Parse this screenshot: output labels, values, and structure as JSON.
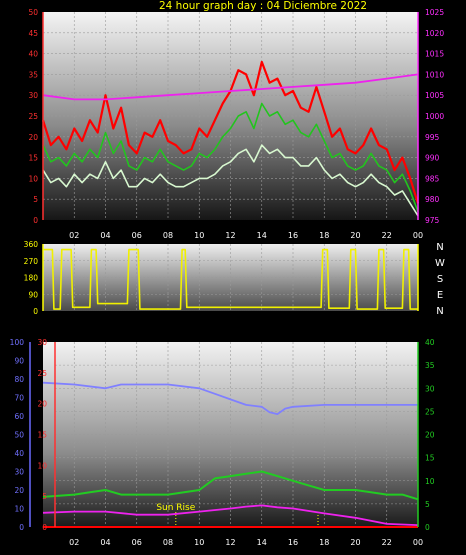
{
  "chart_data": [
    {
      "id": "wind",
      "type": "line",
      "title": "24 hour graph day : 04 Diciembre 2022",
      "x_ticks": [
        "02",
        "04",
        "06",
        "08",
        "10",
        "12",
        "14",
        "16",
        "18",
        "20",
        "22",
        "00"
      ],
      "y_left": {
        "range": [
          0,
          50
        ],
        "ticks": [
          0,
          5,
          10,
          15,
          20,
          25,
          30,
          35,
          40,
          45,
          50
        ]
      },
      "y_right": {
        "range": [
          975,
          1025
        ],
        "ticks": [
          975,
          980,
          985,
          990,
          995,
          1000,
          1005,
          1010,
          1015,
          1020,
          1025
        ]
      },
      "series": [
        {
          "key": "gust",
          "color": "#ff0000",
          "axis": "left",
          "x": [
            0,
            0.5,
            1,
            1.5,
            2,
            2.5,
            3,
            3.5,
            4,
            4.5,
            5,
            5.5,
            6,
            6.5,
            7,
            7.5,
            8,
            8.5,
            9,
            9.5,
            10,
            10.5,
            11,
            11.5,
            12,
            12.5,
            13,
            13.5,
            14,
            14.5,
            15,
            15.5,
            16,
            16.5,
            17,
            17.5,
            18,
            18.5,
            19,
            19.5,
            20,
            20.5,
            21,
            21.5,
            22,
            22.5,
            23,
            23.5,
            24
          ],
          "values": [
            24,
            18,
            20,
            17,
            22,
            19,
            24,
            21,
            30,
            22,
            27,
            18,
            16,
            21,
            20,
            24,
            19,
            18,
            16,
            17,
            22,
            20,
            24,
            28,
            31,
            36,
            35,
            30,
            38,
            33,
            34,
            30,
            31,
            27,
            26,
            32,
            26,
            20,
            22,
            17,
            16,
            18,
            22,
            18,
            17,
            12,
            15,
            10,
            4
          ]
        },
        {
          "key": "avg",
          "color": "#22c41e",
          "axis": "left",
          "x": [
            0,
            0.5,
            1,
            1.5,
            2,
            2.5,
            3,
            3.5,
            4,
            4.5,
            5,
            5.5,
            6,
            6.5,
            7,
            7.5,
            8,
            8.5,
            9,
            9.5,
            10,
            10.5,
            11,
            11.5,
            12,
            12.5,
            13,
            13.5,
            14,
            14.5,
            15,
            15.5,
            16,
            16.5,
            17,
            17.5,
            18,
            18.5,
            19,
            19.5,
            20,
            20.5,
            21,
            21.5,
            22,
            22.5,
            23,
            23.5,
            24
          ],
          "values": [
            18,
            14,
            15,
            13,
            16,
            14,
            17,
            15,
            21,
            16,
            19,
            13,
            12,
            15,
            14,
            17,
            14,
            13,
            12,
            13,
            16,
            15,
            17,
            20,
            22,
            25,
            26,
            22,
            28,
            25,
            26,
            23,
            24,
            21,
            20,
            23,
            19,
            15,
            16,
            13,
            12,
            13,
            16,
            13,
            12,
            9,
            11,
            7,
            2
          ]
        },
        {
          "key": "speed",
          "color": "#d8f8d0",
          "axis": "left",
          "x": [
            0,
            0.5,
            1,
            1.5,
            2,
            2.5,
            3,
            3.5,
            4,
            4.5,
            5,
            5.5,
            6,
            6.5,
            7,
            7.5,
            8,
            8.5,
            9,
            9.5,
            10,
            10.5,
            11,
            11.5,
            12,
            12.5,
            13,
            13.5,
            14,
            14.5,
            15,
            15.5,
            16,
            16.5,
            17,
            17.5,
            18,
            18.5,
            19,
            19.5,
            20,
            20.5,
            21,
            21.5,
            22,
            22.5,
            23,
            23.5,
            24
          ],
          "values": [
            12,
            9,
            10,
            8,
            11,
            9,
            11,
            10,
            14,
            10,
            12,
            8,
            8,
            10,
            9,
            11,
            9,
            8,
            8,
            9,
            10,
            10,
            11,
            13,
            14,
            16,
            17,
            14,
            18,
            16,
            17,
            15,
            15,
            13,
            13,
            15,
            12,
            10,
            11,
            9,
            8,
            9,
            11,
            9,
            8,
            6,
            7,
            4,
            1
          ]
        },
        {
          "key": "pressure",
          "color": "#ee22ee",
          "axis": "right",
          "x": [
            0,
            2,
            4,
            6,
            8,
            10,
            12,
            14,
            16,
            18,
            20,
            22,
            24
          ],
          "values": [
            1005,
            1004,
            1004,
            1004.5,
            1005,
            1005.5,
            1006,
            1006.5,
            1007,
            1007.5,
            1008,
            1009,
            1010
          ]
        }
      ]
    },
    {
      "id": "direction",
      "type": "line",
      "x_ticks": [
        "02",
        "04",
        "06",
        "08",
        "10",
        "12",
        "14",
        "16",
        "18",
        "20",
        "22",
        "00"
      ],
      "y_left": {
        "range": [
          0,
          360
        ],
        "ticks": [
          0,
          90,
          180,
          270,
          360
        ]
      },
      "compass": [
        "N",
        "W",
        "S",
        "E",
        "N"
      ],
      "series": [
        {
          "key": "dir",
          "color": "#f0f000",
          "x": [
            0,
            0.6,
            0.7,
            1.1,
            1.2,
            1.8,
            1.9,
            3.0,
            3.1,
            3.4,
            3.5,
            5.4,
            5.5,
            6.1,
            6.2,
            8.8,
            8.9,
            9.1,
            9.2,
            17.8,
            17.9,
            18.2,
            18.3,
            19.6,
            19.7,
            20.0,
            20.1,
            21.4,
            21.5,
            21.8,
            21.9,
            23.0,
            23.1,
            23.4,
            23.5,
            24
          ],
          "values": [
            330,
            330,
            10,
            10,
            330,
            330,
            20,
            20,
            330,
            330,
            40,
            40,
            330,
            330,
            10,
            10,
            330,
            330,
            20,
            20,
            330,
            330,
            15,
            15,
            330,
            330,
            10,
            10,
            330,
            330,
            15,
            15,
            330,
            330,
            10,
            10
          ]
        }
      ]
    },
    {
      "id": "temp_hum",
      "type": "line",
      "x_ticks": [
        "02",
        "04",
        "06",
        "08",
        "10",
        "12",
        "14",
        "16",
        "18",
        "20",
        "22",
        "00"
      ],
      "y_humidity": {
        "range": [
          0,
          100
        ],
        "ticks": [
          0,
          10,
          20,
          30,
          40,
          50,
          60,
          70,
          80,
          90,
          100
        ]
      },
      "y_left": {
        "range": [
          0,
          30
        ],
        "ticks": [
          0,
          5,
          10,
          15,
          20,
          25,
          30
        ]
      },
      "y_right": {
        "range": [
          0,
          40
        ],
        "ticks": [
          0,
          5,
          10,
          15,
          20,
          25,
          30,
          35,
          40
        ]
      },
      "annotation": "Sun Rise",
      "sunrise_x": 8.5,
      "sunset_x": 17.6,
      "series": [
        {
          "key": "humidity",
          "color": "#8080ff",
          "axis": "humidity",
          "x": [
            0,
            2,
            4,
            5,
            6,
            8,
            10,
            11,
            12,
            13,
            14,
            14.5,
            15,
            15.5,
            16,
            18,
            20,
            22,
            24
          ],
          "values": [
            78,
            77,
            75,
            77,
            77,
            77,
            75,
            72,
            69,
            66,
            65,
            62,
            61,
            64,
            65,
            66,
            66,
            66,
            66
          ]
        },
        {
          "key": "temp",
          "color": "#22cc22",
          "axis": "right",
          "x": [
            0,
            2,
            3,
            4,
            5,
            6,
            8,
            10,
            11,
            12,
            13,
            14,
            15,
            16,
            17,
            18,
            20,
            22,
            23,
            24
          ],
          "values": [
            6.5,
            7,
            7.5,
            8,
            7,
            7,
            7,
            8,
            10.5,
            11,
            11.5,
            12,
            11,
            10,
            9,
            8,
            8,
            7,
            7,
            6
          ]
        },
        {
          "key": "dew",
          "color": "#ee22ee",
          "axis": "left",
          "x": [
            0,
            2,
            4,
            6,
            8,
            10,
            12,
            13,
            14,
            15,
            16,
            18,
            20,
            22,
            24
          ],
          "values": [
            2.3,
            2.5,
            2.5,
            2,
            2,
            2.5,
            3,
            3.3,
            3.5,
            3.2,
            3,
            2.2,
            1.5,
            0.5,
            0.3
          ]
        },
        {
          "key": "rain",
          "color": "#ff0000",
          "axis": "left",
          "x": [
            0,
            24
          ],
          "values": [
            0,
            0
          ]
        }
      ]
    }
  ]
}
